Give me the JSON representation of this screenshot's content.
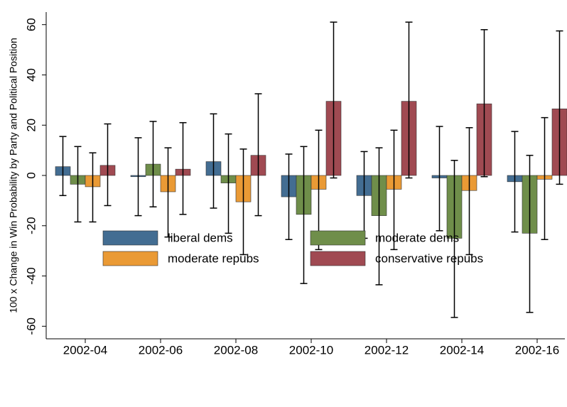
{
  "chart_data": {
    "type": "bar",
    "y_label": "100 x Change in Win Probability by Party and Political Position",
    "categories": [
      "2002-04",
      "2002-06",
      "2002-08",
      "2002-10",
      "2002-12",
      "2002-14",
      "2002-16"
    ],
    "series": [
      {
        "name": "liberal dems",
        "color": "#436d92",
        "values": [
          3.5,
          -0.5,
          5.5,
          -8.5,
          -8,
          -1,
          -2.5
        ],
        "lower": [
          -8,
          -16,
          -13,
          -25.5,
          -25,
          -22,
          -22.5
        ],
        "upper": [
          15.5,
          15,
          24.5,
          8.5,
          9.5,
          19.5,
          17.5
        ]
      },
      {
        "name": "moderate dems",
        "color": "#6f8e4a",
        "values": [
          -3.5,
          4.5,
          -3,
          -15.5,
          -16,
          -25,
          -23
        ],
        "lower": [
          -18.5,
          -12.5,
          -23,
          -43,
          -43.5,
          -56.5,
          -54.5
        ],
        "upper": [
          11.5,
          21.5,
          16.5,
          11.5,
          11,
          6,
          8
        ]
      },
      {
        "name": "moderate repubs",
        "color": "#ea9a35",
        "values": [
          -4.5,
          -6.5,
          -10.5,
          -5.5,
          -5.5,
          -6,
          -1.5
        ],
        "lower": [
          -18.5,
          -24.5,
          -31.5,
          -29.5,
          -29.5,
          -31.5,
          -25.5
        ],
        "upper": [
          9,
          11,
          10.5,
          18,
          18,
          19,
          23
        ]
      },
      {
        "name": "conservative repubs",
        "color": "#a04a52",
        "values": [
          4,
          2.5,
          8,
          29.5,
          29.5,
          28.5,
          26.5
        ],
        "lower": [
          -12,
          -15.5,
          -16,
          -1,
          -1,
          -0.5,
          -3.5
        ],
        "upper": [
          20.5,
          21,
          32.5,
          61,
          61,
          58,
          57.5
        ]
      }
    ],
    "ylim": [
      -65,
      65
    ],
    "yticks": [
      -60,
      -40,
      -20,
      0,
      20,
      40,
      60
    ],
    "grid": false
  }
}
